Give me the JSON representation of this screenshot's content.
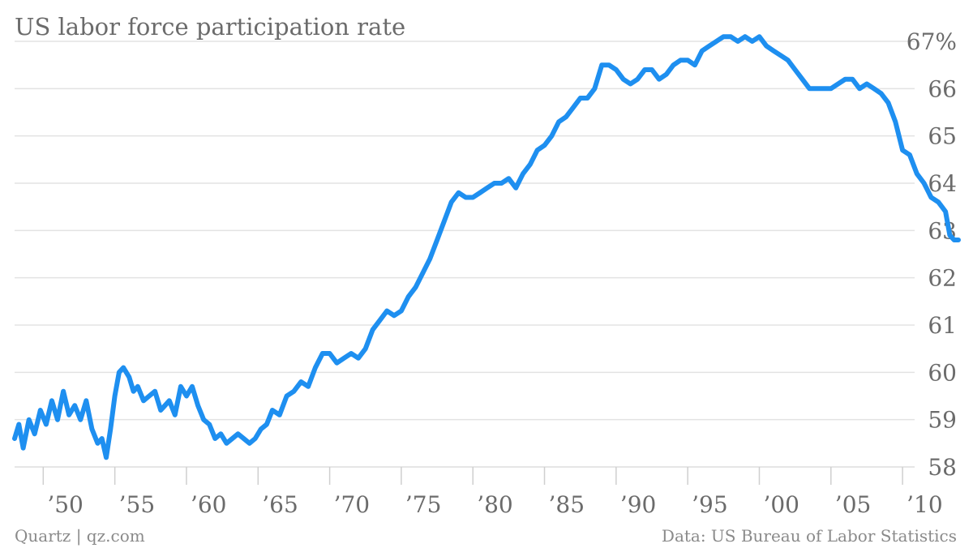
{
  "chart_data": {
    "type": "line",
    "title": "US labor force participation rate",
    "xlabel": "",
    "ylabel": "",
    "ylim": [
      58,
      67
    ],
    "xlim": [
      1948,
      2013.9
    ],
    "y_ticks": [
      58,
      59,
      60,
      61,
      62,
      63,
      64,
      65,
      66,
      67
    ],
    "y_tick_labels": [
      "58",
      "59",
      "60",
      "61",
      "62",
      "63",
      "64",
      "65",
      "66",
      "67%"
    ],
    "x_ticks": [
      1950,
      1955,
      1960,
      1965,
      1970,
      1975,
      1980,
      1985,
      1990,
      1995,
      2000,
      2005,
      2010
    ],
    "x_tick_labels": [
      "’50",
      "’55",
      "’60",
      "’65",
      "’70",
      "’75",
      "’80",
      "’85",
      "’90",
      "’95",
      "’00",
      "’05",
      "’10"
    ],
    "grid": true,
    "series": [
      {
        "color": "#1e8ff0",
        "x": [
          1948.0,
          1948.3,
          1948.6,
          1949.0,
          1949.4,
          1949.8,
          1950.2,
          1950.6,
          1951.0,
          1951.4,
          1951.8,
          1952.2,
          1952.6,
          1953.0,
          1953.4,
          1953.8,
          1954.1,
          1954.4,
          1954.7,
          1955.0,
          1955.3,
          1955.6,
          1956.0,
          1956.3,
          1956.6,
          1957.0,
          1957.4,
          1957.8,
          1958.2,
          1958.5,
          1958.8,
          1959.2,
          1959.6,
          1960.0,
          1960.4,
          1960.8,
          1961.2,
          1961.6,
          1962.0,
          1962.4,
          1962.8,
          1963.2,
          1963.6,
          1964.0,
          1964.4,
          1964.8,
          1965.2,
          1965.6,
          1966.0,
          1966.5,
          1967.0,
          1967.5,
          1968.0,
          1968.5,
          1969.0,
          1969.5,
          1970.0,
          1970.5,
          1971.0,
          1971.5,
          1972.0,
          1972.5,
          1973.0,
          1973.5,
          1974.0,
          1974.5,
          1975.0,
          1975.5,
          1976.0,
          1976.5,
          1977.0,
          1977.5,
          1978.0,
          1978.5,
          1979.0,
          1979.5,
          1980.0,
          1980.5,
          1981.0,
          1981.5,
          1982.0,
          1982.5,
          1983.0,
          1983.5,
          1984.0,
          1984.5,
          1985.0,
          1985.5,
          1986.0,
          1986.5,
          1987.0,
          1987.5,
          1988.0,
          1988.5,
          1989.0,
          1989.5,
          1990.0,
          1990.5,
          1991.0,
          1991.5,
          1992.0,
          1992.5,
          1993.0,
          1993.5,
          1994.0,
          1994.5,
          1995.0,
          1995.5,
          1996.0,
          1996.5,
          1997.0,
          1997.5,
          1998.0,
          1998.5,
          1999.0,
          1999.5,
          2000.0,
          2000.5,
          2001.0,
          2001.5,
          2002.0,
          2002.5,
          2003.0,
          2003.5,
          2004.0,
          2004.5,
          2005.0,
          2005.5,
          2006.0,
          2006.5,
          2007.0,
          2007.5,
          2008.0,
          2008.5,
          2009.0,
          2009.5,
          2010.0,
          2010.5,
          2011.0,
          2011.5,
          2012.0,
          2012.5,
          2013.0,
          2013.3,
          2013.6,
          2013.9
        ],
        "values": [
          58.6,
          58.9,
          58.4,
          59.0,
          58.7,
          59.2,
          58.9,
          59.4,
          59.0,
          59.6,
          59.1,
          59.3,
          59.0,
          59.4,
          58.8,
          58.5,
          58.6,
          58.2,
          58.8,
          59.5,
          60.0,
          60.1,
          59.9,
          59.6,
          59.7,
          59.4,
          59.5,
          59.6,
          59.2,
          59.3,
          59.4,
          59.1,
          59.7,
          59.5,
          59.7,
          59.3,
          59.0,
          58.9,
          58.6,
          58.7,
          58.5,
          58.6,
          58.7,
          58.6,
          58.5,
          58.6,
          58.8,
          58.9,
          59.2,
          59.1,
          59.5,
          59.6,
          59.8,
          59.7,
          60.1,
          60.4,
          60.4,
          60.2,
          60.3,
          60.4,
          60.3,
          60.5,
          60.9,
          61.1,
          61.3,
          61.2,
          61.3,
          61.6,
          61.8,
          62.1,
          62.4,
          62.8,
          63.2,
          63.6,
          63.8,
          63.7,
          63.7,
          63.8,
          63.9,
          64.0,
          64.0,
          64.1,
          63.9,
          64.2,
          64.4,
          64.7,
          64.8,
          65.0,
          65.3,
          65.4,
          65.6,
          65.8,
          65.8,
          66.0,
          66.5,
          66.5,
          66.4,
          66.2,
          66.1,
          66.2,
          66.4,
          66.4,
          66.2,
          66.3,
          66.5,
          66.6,
          66.6,
          66.5,
          66.8,
          66.9,
          67.0,
          67.1,
          67.1,
          67.0,
          67.1,
          67.0,
          67.1,
          66.9,
          66.8,
          66.7,
          66.6,
          66.4,
          66.2,
          66.0,
          66.0,
          66.0,
          66.0,
          66.1,
          66.2,
          66.2,
          66.0,
          66.1,
          66.0,
          65.9,
          65.7,
          65.3,
          64.7,
          64.6,
          64.2,
          64.0,
          63.7,
          63.6,
          63.4,
          62.9,
          62.8,
          62.8
        ]
      }
    ]
  },
  "footer": {
    "source_left": "Quartz | qz.com",
    "source_right": "Data: US Bureau of Labor Statistics"
  }
}
